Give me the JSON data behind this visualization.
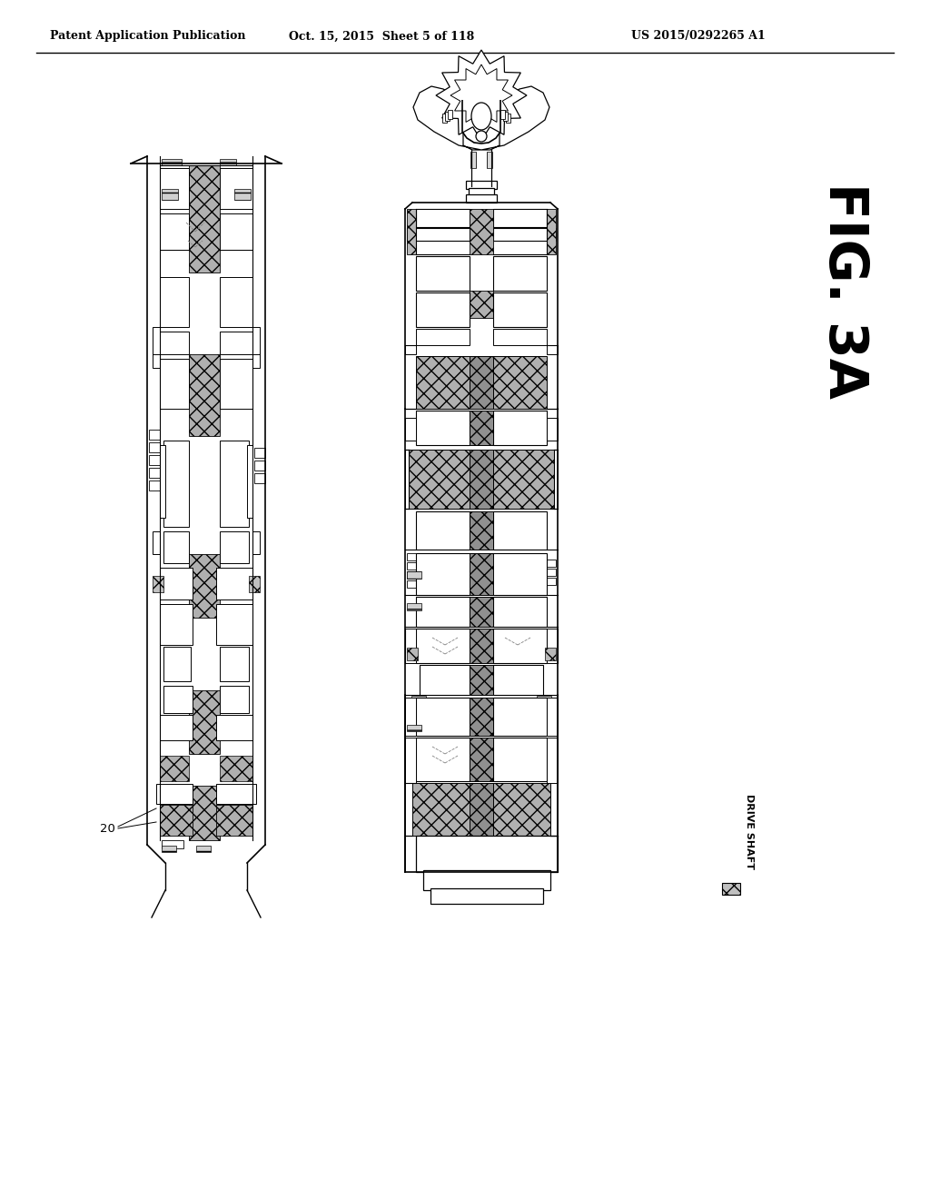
{
  "header_left": "Patent Application Publication",
  "header_center": "Oct. 15, 2015  Sheet 5 of 118",
  "header_right": "US 2015/0292265 A1",
  "fig_label": "FIG. 3A",
  "legend_label": "DRIVE SHAFT",
  "label_20": "20",
  "bg_color": "#ffffff",
  "hatch_pattern": "xx",
  "shaft_fc": "#c8c8c8",
  "white": "#ffffff",
  "black": "#000000"
}
